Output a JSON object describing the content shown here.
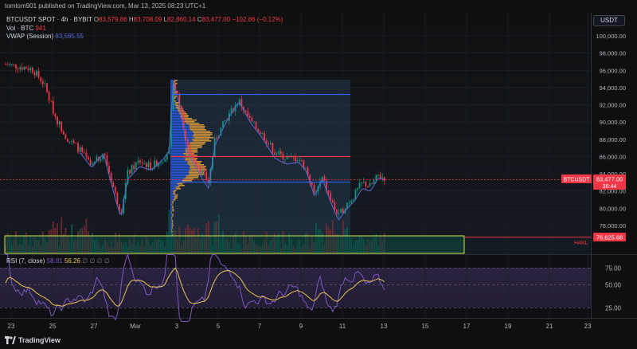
{
  "header": {
    "text": "tomtom901 published on TradingView.com, Mar 13, 2025 08:23 UTC+1"
  },
  "legend": {
    "symbol": "BTCUSDT SPOT · 4h · BYBIT",
    "o_label": "O",
    "o": "83,579.86",
    "h_label": "H",
    "h": "83,708.09",
    "l_label": "L",
    "l": "82,860.14",
    "c_label": "C",
    "c": "83,477.00",
    "change": "−102.86 (−0.12%)",
    "vol_label": "Vol · BTC",
    "vol": "941",
    "vwap_label": "VWAP (Session)",
    "vwap": "83,585.55"
  },
  "currency_button": "USDT",
  "price_axis": {
    "labels": [
      "100,000.00",
      "98,000.00",
      "96,000.00",
      "94,000.00",
      "92,000.00",
      "90,000.00",
      "88,000.00",
      "86,000.00",
      "84,000.00",
      "82,000.00",
      "80,000.00",
      "78,000.00"
    ],
    "values": [
      100000,
      98000,
      96000,
      94000,
      92000,
      90000,
      88000,
      86000,
      84000,
      82000,
      80000,
      78000
    ]
  },
  "price_tags": {
    "symbol": "BTCUSDT",
    "last_price": "83,477.00",
    "countdown": "36:44",
    "level": "76,625.68",
    "level_label": "H4KL"
  },
  "rsi": {
    "label": "RSI (7, close)",
    "value1": "58.81",
    "value2": "56.26",
    "nan_marks": "∅ ∅ ∅ ∅",
    "axis_labels": [
      "75.00",
      "50.00",
      "25.00"
    ],
    "axis_values": [
      75,
      50,
      25
    ]
  },
  "time_axis": {
    "labels": [
      "23",
      "25",
      "27",
      "Mar",
      "3",
      "5",
      "7",
      "9",
      "11",
      "13",
      "15",
      "17",
      "19",
      "21",
      "23"
    ]
  },
  "footer": {
    "brand": "TradingView"
  },
  "colors": {
    "up": "#089981",
    "down": "#f23645",
    "vwap": "#5b6bd6",
    "rsi": "#7e57c2",
    "rsi_ma": "#e8c54d",
    "level_line": "#f23645",
    "blue_line": "#2962ff"
  }
}
